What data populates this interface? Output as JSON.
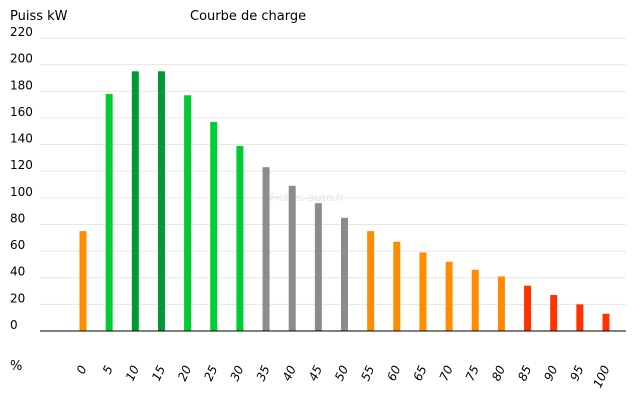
{
  "chart_data": {
    "type": "bar",
    "title": "Courbe de charge",
    "ylabel": "Puiss kW",
    "xlabel": "%",
    "ylim": [
      0,
      220
    ],
    "yticks": [
      0,
      20,
      40,
      60,
      80,
      100,
      120,
      140,
      160,
      180,
      200,
      220
    ],
    "categories": [
      "0",
      "5",
      "10",
      "15",
      "20",
      "25",
      "30",
      "35",
      "40",
      "45",
      "50",
      "55",
      "60",
      "65",
      "70",
      "75",
      "80",
      "85",
      "90",
      "95",
      "100"
    ],
    "values": [
      75,
      178,
      195,
      195,
      177,
      157,
      139,
      123,
      109,
      96,
      85,
      75,
      67,
      59,
      52,
      46,
      41,
      34,
      27,
      20,
      13
    ],
    "bar_colors": [
      "#ff8c00",
      "#00cc33",
      "#009933",
      "#009933",
      "#00cc33",
      "#00cc33",
      "#00cc33",
      "#8c8c8c",
      "#8c8c8c",
      "#8c8c8c",
      "#8c8c8c",
      "#ff8c00",
      "#ff8c00",
      "#ff8c00",
      "#ff8c00",
      "#ff8c00",
      "#ff8c00",
      "#ff3300",
      "#ff3300",
      "#ff3300",
      "#ff3300"
    ],
    "grid": true,
    "watermark": "Fiches-auto.fr"
  }
}
